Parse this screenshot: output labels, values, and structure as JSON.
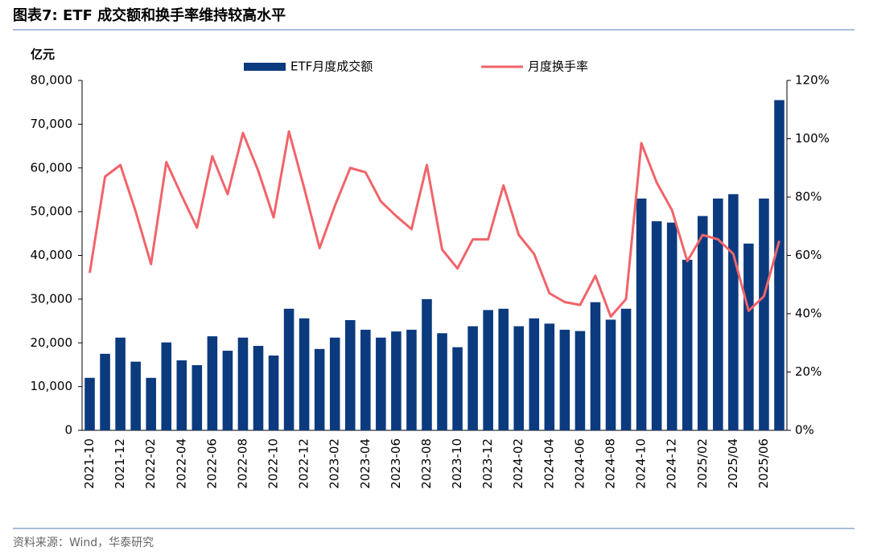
{
  "chart_data": {
    "type": "bar-line",
    "title": "图表7:  ETF 成交额和换手率维持较高水平",
    "y_unit": "亿元",
    "source": "资料来源：Wind，华泰研究",
    "categories": [
      "2021-10",
      null,
      "2021-12",
      null,
      "2022-02",
      null,
      "2022-04",
      null,
      "2022-06",
      null,
      "2022-08",
      null,
      "2022-10",
      null,
      "2022-12",
      null,
      "2023-02",
      null,
      "2023-04",
      null,
      "2023-06",
      null,
      "2023-08",
      null,
      "2023-10",
      null,
      "2023-12",
      null,
      "2024-02",
      null,
      "2024-04",
      null,
      "2024-06",
      null,
      "2024-08",
      null,
      "2024-10",
      null,
      "2024-12",
      null,
      "2025/02",
      null,
      "2025/04",
      null,
      "2025/06",
      null
    ],
    "series": [
      {
        "name": "ETF月度成交额",
        "color": "#0b3a7e",
        "kind": "bar",
        "axis": "y",
        "values": [
          12000,
          17500,
          21200,
          15700,
          12000,
          20100,
          16000,
          14900,
          21500,
          18200,
          21200,
          19300,
          17100,
          27800,
          25600,
          18600,
          21200,
          25200,
          23000,
          21200,
          22600,
          23000,
          30000,
          22200,
          19000,
          23800,
          27500,
          27800,
          23800,
          25600,
          24400,
          23000,
          22700,
          29300,
          25300,
          27800,
          53000,
          47800,
          47500,
          39000,
          49000,
          53000,
          54000,
          42700,
          53000,
          75500
        ]
      },
      {
        "name": "月度换手率",
        "color": "#f0646a",
        "kind": "line",
        "axis": "y2",
        "values": [
          54,
          87,
          91,
          75,
          57,
          92,
          80.5,
          69.5,
          94,
          81,
          102,
          89,
          73,
          102.5,
          83,
          62.5,
          77,
          90,
          88.5,
          78.5,
          73.5,
          69,
          91,
          62,
          55.5,
          65.5,
          65.5,
          84,
          67,
          60.5,
          47,
          44,
          43,
          53,
          39,
          45,
          98.5,
          85,
          75.5,
          58,
          67,
          65.5,
          60.5,
          41,
          46,
          65
        ]
      }
    ],
    "ylim": [
      0,
      80000
    ],
    "yticks": [
      0,
      {
        "value": 10000,
        "label": "10,000"
      },
      {
        "value": 20000,
        "label": "20,000"
      },
      {
        "value": 30000,
        "label": "30,000"
      },
      {
        "value": 40000,
        "label": "40,000"
      },
      {
        "value": 50000,
        "label": "50,000"
      },
      {
        "value": 60000,
        "label": "60,000"
      },
      {
        "value": 70000,
        "label": "70,000"
      },
      {
        "value": 80000,
        "label": "80,000"
      }
    ],
    "y2lim": [
      0,
      120
    ],
    "y2ticks": [
      {
        "value": 0,
        "label": "0%"
      },
      {
        "value": 20,
        "label": "20%"
      },
      {
        "value": 40,
        "label": "40%"
      },
      {
        "value": 60,
        "label": "60%"
      },
      {
        "value": 80,
        "label": "80%"
      },
      {
        "value": 100,
        "label": "100%"
      },
      {
        "value": 120,
        "label": "120%"
      }
    ],
    "grid": false,
    "legend": "top"
  }
}
